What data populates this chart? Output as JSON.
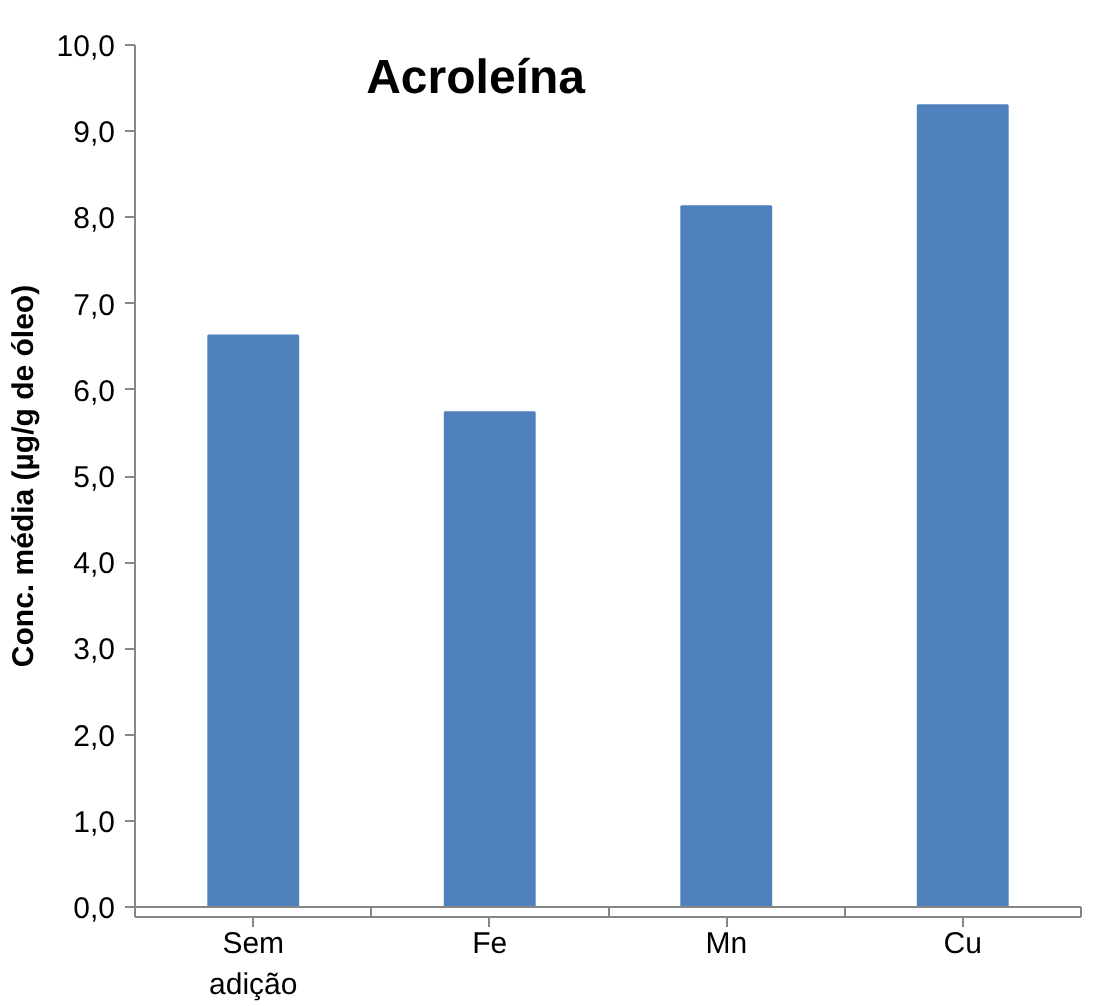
{
  "chart_data": {
    "type": "bar",
    "title": "Acroleína",
    "ylabel": "Conc. média (µg/g de óleo)",
    "categories": [
      "Sem\nadição",
      "Fe",
      "Mn",
      "Cu"
    ],
    "values": [
      6.63,
      5.74,
      8.13,
      9.3
    ],
    "color": "#4f81bd",
    "ylim": [
      0,
      10
    ],
    "yticks": [
      {
        "value": 0,
        "label": "0,0"
      },
      {
        "value": 1,
        "label": "1,0"
      },
      {
        "value": 2,
        "label": "2,0"
      },
      {
        "value": 3,
        "label": "3,0"
      },
      {
        "value": 4,
        "label": "4,0"
      },
      {
        "value": 5,
        "label": "5,0"
      },
      {
        "value": 6,
        "label": "6,0"
      },
      {
        "value": 7,
        "label": "7,0"
      },
      {
        "value": 8,
        "label": "8,0"
      },
      {
        "value": 9,
        "label": "9,0"
      },
      {
        "value": 10,
        "label": "10,0"
      }
    ],
    "grid": false
  }
}
